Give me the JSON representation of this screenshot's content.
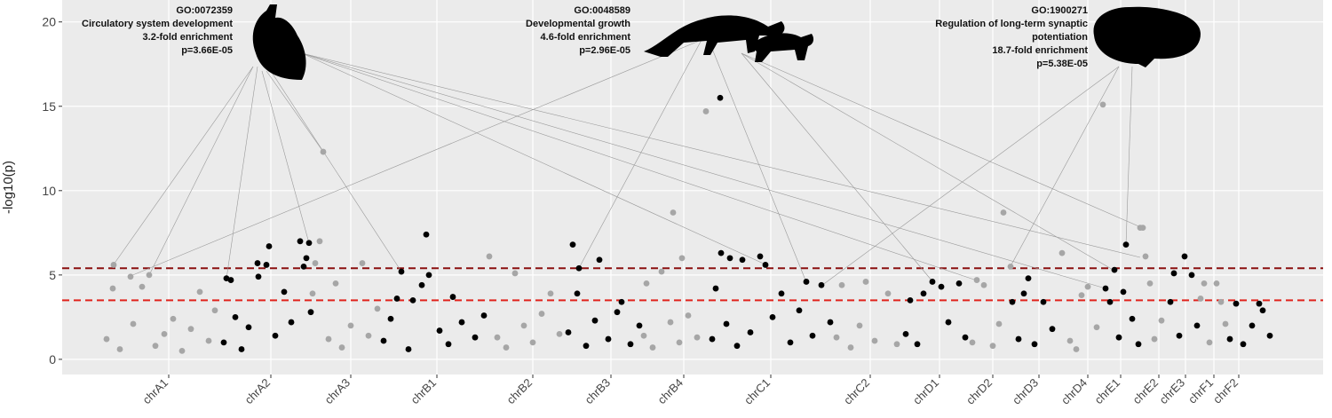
{
  "chart_data": {
    "type": "scatter",
    "ylabel": "-log10(p)",
    "xlim": [
      70,
      1490
    ],
    "ylim": [
      -0.9,
      21.3
    ],
    "yticks": [
      0,
      5,
      10,
      15,
      20
    ],
    "xticks": [
      {
        "value": 190,
        "label": "chrA1"
      },
      {
        "value": 305,
        "label": "chrA2"
      },
      {
        "value": 395,
        "label": "chrA3"
      },
      {
        "value": 492,
        "label": "chrB1"
      },
      {
        "value": 600,
        "label": "chrB2"
      },
      {
        "value": 688,
        "label": "chrB3"
      },
      {
        "value": 770,
        "label": "chrB4"
      },
      {
        "value": 868,
        "label": "chrC1"
      },
      {
        "value": 980,
        "label": "chrC2"
      },
      {
        "value": 1058,
        "label": "chrD1"
      },
      {
        "value": 1118,
        "label": "chrD2"
      },
      {
        "value": 1170,
        "label": "chrD3"
      },
      {
        "value": 1225,
        "label": "chrD4"
      },
      {
        "value": 1262,
        "label": "chrE1"
      },
      {
        "value": 1305,
        "label": "chrE2"
      },
      {
        "value": 1335,
        "label": "chrE3"
      },
      {
        "value": 1367,
        "label": "chrF1"
      },
      {
        "value": 1395,
        "label": "chrF2"
      }
    ],
    "grid": true,
    "hlines": [
      {
        "value": 5.4,
        "color": "#8b1010"
      },
      {
        "value": 3.5,
        "color": "#e0231c"
      }
    ],
    "series": [
      {
        "color": "#a6a6a6",
        "x": [
          120,
          128,
          127,
          135,
          147,
          150,
          160,
          168,
          175,
          185,
          195,
          205,
          215,
          225,
          235,
          242
        ],
        "values": [
          1.2,
          5.6,
          4.2,
          0.6,
          4.9,
          2.1,
          4.3,
          5.0,
          0.8,
          1.5,
          2.4,
          0.5,
          1.8,
          4.0,
          1.1,
          2.9
        ]
      },
      {
        "color": "#000000",
        "x": [
          252,
          255,
          260,
          265,
          272,
          280,
          290,
          291,
          300,
          303,
          310,
          320,
          328,
          338,
          342,
          345,
          348,
          350
        ],
        "values": [
          1.0,
          4.8,
          4.7,
          2.5,
          0.6,
          1.9,
          5.7,
          4.9,
          5.6,
          6.7,
          1.4,
          4.0,
          2.2,
          7.0,
          5.5,
          6.0,
          6.9,
          2.8
        ]
      },
      {
        "color": "#a6a6a6",
        "x": [
          352,
          355,
          360,
          364,
          370,
          378,
          385,
          395,
          408,
          415,
          425
        ],
        "values": [
          3.9,
          5.7,
          7.0,
          12.3,
          1.2,
          4.5,
          0.7,
          2.0,
          5.7,
          1.4,
          3.0
        ]
      },
      {
        "color": "#000000",
        "x": [
          432,
          440,
          447,
          452,
          460,
          465,
          475,
          480,
          483,
          495,
          505,
          510,
          520,
          535,
          545
        ],
        "values": [
          1.1,
          2.4,
          3.6,
          5.2,
          0.6,
          3.5,
          4.4,
          7.4,
          5.0,
          1.7,
          0.9,
          3.7,
          2.2,
          1.3,
          2.6
        ]
      },
      {
        "color": "#a6a6a6",
        "x": [
          551,
          560,
          570,
          580,
          590,
          600,
          610,
          620,
          630
        ],
        "values": [
          6.1,
          1.3,
          0.7,
          5.1,
          2.0,
          1.0,
          2.7,
          3.9,
          1.5
        ]
      },
      {
        "color": "#000000",
        "x": [
          640,
          645,
          650,
          652,
          660,
          670,
          675,
          685,
          695,
          700,
          710,
          720
        ],
        "values": [
          1.6,
          6.8,
          3.9,
          5.4,
          0.8,
          2.3,
          5.9,
          1.2,
          2.8,
          3.4,
          0.9,
          2.0
        ]
      },
      {
        "color": "#a6a6a6",
        "x": [
          725,
          728,
          735,
          745,
          755,
          758,
          765,
          768,
          775,
          785,
          795
        ],
        "values": [
          1.4,
          4.5,
          0.7,
          5.2,
          2.2,
          8.7,
          1.0,
          6.0,
          2.6,
          1.3,
          14.7
        ]
      },
      {
        "color": "#000000",
        "x": [
          802,
          806,
          811,
          812,
          818,
          822,
          830,
          836,
          845,
          856,
          862,
          870,
          880,
          890,
          900,
          908,
          915,
          925,
          935
        ],
        "values": [
          1.2,
          4.2,
          15.5,
          6.3,
          2.1,
          6.0,
          0.8,
          5.9,
          1.6,
          6.1,
          5.6,
          2.5,
          3.9,
          1.0,
          2.9,
          4.6,
          1.4,
          4.4,
          2.2
        ]
      },
      {
        "color": "#a6a6a6",
        "x": [
          942,
          948,
          958,
          968,
          975,
          985,
          1000,
          1010
        ],
        "values": [
          1.3,
          4.4,
          0.7,
          2.0,
          4.6,
          1.1,
          3.9,
          0.9
        ]
      },
      {
        "color": "#000000",
        "x": [
          1020,
          1025,
          1033,
          1040,
          1050,
          1060,
          1068,
          1080,
          1087
        ],
        "values": [
          1.5,
          3.5,
          0.9,
          3.9,
          4.6,
          4.3,
          2.2,
          4.5,
          1.3
        ]
      },
      {
        "color": "#a6a6a6",
        "x": [
          1095,
          1100,
          1108,
          1118,
          1125,
          1130,
          1138
        ],
        "values": [
          1.0,
          4.7,
          4.4,
          0.8,
          2.1,
          8.7,
          5.5
        ]
      },
      {
        "color": "#000000",
        "x": [
          1140,
          1147,
          1153,
          1158,
          1165,
          1175,
          1185
        ],
        "values": [
          3.4,
          1.2,
          3.9,
          4.8,
          0.9,
          3.4,
          1.8
        ]
      },
      {
        "color": "#a6a6a6",
        "x": [
          1196,
          1205,
          1212,
          1218,
          1225,
          1235,
          1242
        ],
        "values": [
          6.3,
          1.1,
          0.6,
          3.8,
          4.3,
          1.9,
          15.1
        ]
      },
      {
        "color": "#000000",
        "x": [
          1245,
          1250,
          1255,
          1260,
          1265,
          1268,
          1275,
          1282
        ],
        "values": [
          4.2,
          3.4,
          5.3,
          1.3,
          4.0,
          6.8,
          2.4,
          0.9
        ]
      },
      {
        "color": "#a6a6a6",
        "x": [
          1284,
          1287,
          1290,
          1295,
          1300,
          1308
        ],
        "values": [
          7.8,
          7.8,
          6.1,
          4.5,
          1.2,
          2.3
        ]
      },
      {
        "color": "#000000",
        "x": [
          1318,
          1322,
          1328,
          1334,
          1342,
          1348
        ],
        "values": [
          3.4,
          5.1,
          1.4,
          6.1,
          5.0,
          2.0
        ]
      },
      {
        "color": "#a6a6a6",
        "x": [
          1352,
          1356,
          1362,
          1370,
          1375,
          1380
        ],
        "values": [
          3.6,
          4.5,
          1.0,
          4.5,
          3.4,
          2.1
        ]
      },
      {
        "color": "#000000",
        "x": [
          1385,
          1392,
          1400,
          1410,
          1418,
          1422,
          1430
        ],
        "values": [
          1.2,
          3.3,
          0.9,
          2.0,
          3.3,
          2.9,
          1.4
        ]
      }
    ],
    "annotations": [
      {
        "lines": [
          "GO:0072359",
          "Circulatory system development",
          "3.2-fold enrichment",
          "p=3.66E-05"
        ]
      },
      {
        "lines": [
          "GO:0048589",
          "Developmental growth",
          "4.6-fold enrichment",
          "p=2.96E-05"
        ]
      },
      {
        "lines": [
          "GO:1900271",
          "Regulation of long-term synaptic",
          "potentiation",
          "18.7-fold enrichment",
          "p=5.38E-05"
        ]
      }
    ]
  }
}
